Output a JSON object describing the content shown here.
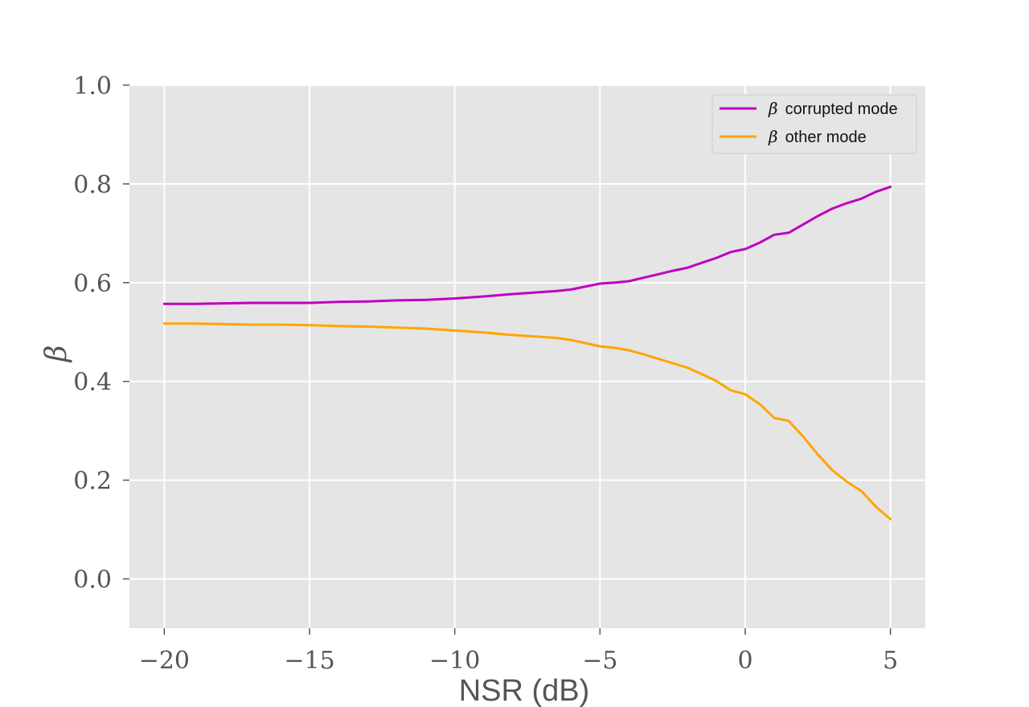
{
  "chart_data": {
    "type": "line",
    "title": "",
    "xlabel": "NSR (dB)",
    "ylabel": "β",
    "xlim": [
      -21.2,
      6.2
    ],
    "ylim": [
      -0.1,
      1.0
    ],
    "xticks": [
      -20,
      -15,
      -10,
      -5,
      0,
      5
    ],
    "xtick_labels": [
      "−20",
      "−15",
      "−10",
      "−5",
      "0",
      "5"
    ],
    "yticks": [
      0.0,
      0.2,
      0.4,
      0.6,
      0.8,
      1.0
    ],
    "ytick_labels": [
      "0.0",
      "0.2",
      "0.4",
      "0.6",
      "0.8",
      "1.0"
    ],
    "grid": true,
    "legend_position": "top-right",
    "x": [
      -20,
      -19,
      -18,
      -17,
      -16,
      -15,
      -14,
      -13,
      -12,
      -11,
      -10,
      -9,
      -8,
      -7,
      -6.5,
      -6,
      -5,
      -4.5,
      -4,
      -3.5,
      -3,
      -2.5,
      -2,
      -1.5,
      -1,
      -0.5,
      0,
      0.5,
      1,
      1.5,
      2,
      2.5,
      3,
      3.5,
      4,
      4.5,
      5
    ],
    "series": [
      {
        "name": "β corrupted mode",
        "legend_symbol": "β",
        "legend_text": "corrupted mode",
        "color": "#bf00bf",
        "values": [
          0.557,
          0.557,
          0.558,
          0.559,
          0.559,
          0.559,
          0.561,
          0.562,
          0.564,
          0.565,
          0.568,
          0.572,
          0.577,
          0.581,
          0.583,
          0.586,
          0.598,
          0.6,
          0.603,
          0.61,
          0.617,
          0.624,
          0.63,
          0.64,
          0.65,
          0.662,
          0.668,
          0.681,
          0.697,
          0.701,
          0.718,
          0.735,
          0.75,
          0.761,
          0.77,
          0.784,
          0.794
        ]
      },
      {
        "name": "β other mode",
        "legend_symbol": "β",
        "legend_text": "other mode",
        "color": "#ffa500",
        "values": [
          0.517,
          0.517,
          0.516,
          0.515,
          0.515,
          0.514,
          0.512,
          0.511,
          0.509,
          0.507,
          0.503,
          0.499,
          0.494,
          0.49,
          0.488,
          0.484,
          0.471,
          0.468,
          0.463,
          0.455,
          0.446,
          0.437,
          0.428,
          0.415,
          0.401,
          0.382,
          0.374,
          0.354,
          0.326,
          0.32,
          0.288,
          0.252,
          0.22,
          0.197,
          0.178,
          0.146,
          0.121
        ]
      }
    ]
  }
}
